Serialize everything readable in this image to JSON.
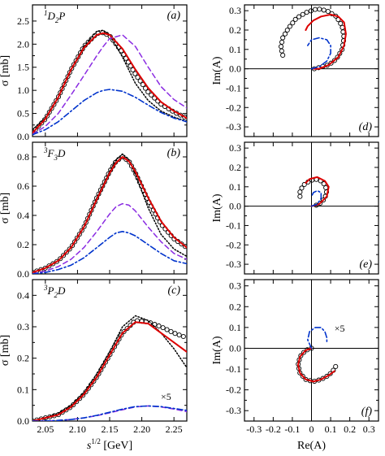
{
  "chart_data": [
    {
      "type": "line",
      "panel": "a",
      "panel_label": "(a)",
      "wave_label": {
        "sup": "1",
        "main": "D",
        "sub": "2",
        "tail": "P"
      },
      "xlabel": "",
      "ylabel": "σ [mb]",
      "xlim": [
        2.03,
        2.27
      ],
      "ylim": [
        0,
        2.85
      ],
      "yticks": [
        "0.0",
        "0.5",
        "1.0",
        "1.5",
        "2.0",
        "2.5"
      ],
      "xticks": [
        "2.05",
        "2.10",
        "2.15",
        "2.20",
        "2.25"
      ],
      "x": [
        2.03,
        2.05,
        2.07,
        2.09,
        2.11,
        2.13,
        2.14,
        2.15,
        2.17,
        2.19,
        2.21,
        2.23,
        2.25,
        2.27
      ],
      "series": [
        {
          "style": "dotted-black",
          "values": [
            0.15,
            0.4,
            0.85,
            1.45,
            1.95,
            2.28,
            2.3,
            2.2,
            1.72,
            1.15,
            0.78,
            0.55,
            0.42,
            0.33
          ]
        },
        {
          "style": "circles-black",
          "values": [
            0.08,
            0.38,
            0.85,
            1.45,
            1.95,
            2.23,
            2.25,
            2.18,
            1.82,
            1.35,
            0.96,
            0.7,
            0.53,
            0.4
          ]
        },
        {
          "style": "solid-red",
          "values": [
            0.08,
            0.38,
            0.85,
            1.45,
            1.92,
            2.2,
            2.24,
            2.2,
            1.9,
            1.45,
            1.05,
            0.75,
            0.55,
            0.4
          ]
        },
        {
          "style": "dashed-purple",
          "values": [
            0.05,
            0.22,
            0.5,
            0.9,
            1.32,
            1.75,
            1.95,
            2.12,
            2.2,
            1.95,
            1.5,
            1.08,
            0.8,
            0.62
          ]
        },
        {
          "style": "dashdot-blue",
          "values": [
            0.04,
            0.15,
            0.32,
            0.55,
            0.78,
            0.95,
            1.0,
            1.02,
            0.98,
            0.85,
            0.68,
            0.52,
            0.4,
            0.32
          ]
        }
      ]
    },
    {
      "type": "line",
      "panel": "b",
      "panel_label": "(b)",
      "wave_label": {
        "sup": "3",
        "main": "F",
        "sub": "3",
        "tail": "D"
      },
      "xlabel": "",
      "ylabel": "σ [mb]",
      "xlim": [
        2.03,
        2.27
      ],
      "ylim": [
        0,
        0.9
      ],
      "yticks": [
        "0.0",
        "0.2",
        "0.4",
        "0.6",
        "0.8"
      ],
      "xticks": [
        "2.05",
        "2.10",
        "2.15",
        "2.20",
        "2.25"
      ],
      "x": [
        2.03,
        2.05,
        2.07,
        2.09,
        2.11,
        2.13,
        2.15,
        2.16,
        2.17,
        2.18,
        2.19,
        2.21,
        2.23,
        2.25,
        2.27
      ],
      "series": [
        {
          "style": "dotted-black",
          "values": [
            0.01,
            0.04,
            0.09,
            0.18,
            0.32,
            0.52,
            0.7,
            0.78,
            0.82,
            0.78,
            0.68,
            0.45,
            0.27,
            0.17,
            0.12
          ]
        },
        {
          "style": "circles-black",
          "values": [
            0.01,
            0.04,
            0.09,
            0.18,
            0.32,
            0.52,
            0.7,
            0.77,
            0.8,
            0.77,
            0.69,
            0.5,
            0.34,
            0.24,
            0.18
          ]
        },
        {
          "style": "solid-red",
          "values": [
            0.01,
            0.04,
            0.09,
            0.18,
            0.32,
            0.51,
            0.69,
            0.76,
            0.8,
            0.77,
            0.7,
            0.52,
            0.36,
            0.25,
            0.18
          ]
        },
        {
          "style": "dashed-purple",
          "values": [
            0.0,
            0.02,
            0.05,
            0.1,
            0.18,
            0.29,
            0.41,
            0.46,
            0.48,
            0.47,
            0.43,
            0.32,
            0.22,
            0.14,
            0.1
          ]
        },
        {
          "style": "dashdot-blue",
          "values": [
            0.0,
            0.01,
            0.03,
            0.06,
            0.11,
            0.18,
            0.25,
            0.28,
            0.29,
            0.28,
            0.26,
            0.2,
            0.14,
            0.09,
            0.07
          ]
        }
      ]
    },
    {
      "type": "line",
      "panel": "c",
      "panel_label": "(c)",
      "wave_label": {
        "sup": "3",
        "main": "P",
        "sub": "2",
        "tail": "D"
      },
      "annotation": "×5",
      "xlabel": "s^1/2 [GeV]",
      "ylabel": "σ [mb]",
      "xlim": [
        2.03,
        2.27
      ],
      "ylim": [
        0,
        0.45
      ],
      "yticks": [
        "0.0",
        "0.1",
        "0.2",
        "0.3",
        "0.4"
      ],
      "xticks": [
        "2.05",
        "2.10",
        "2.15",
        "2.20",
        "2.25"
      ],
      "x": [
        2.03,
        2.05,
        2.07,
        2.09,
        2.11,
        2.13,
        2.15,
        2.17,
        2.19,
        2.21,
        2.23,
        2.25,
        2.27
      ],
      "series": [
        {
          "style": "dotted-black",
          "values": [
            0.0,
            0.01,
            0.025,
            0.05,
            0.09,
            0.15,
            0.22,
            0.3,
            0.335,
            0.32,
            0.28,
            0.23,
            0.17
          ]
        },
        {
          "style": "circles-black",
          "values": [
            0.0,
            0.01,
            0.02,
            0.045,
            0.085,
            0.14,
            0.21,
            0.28,
            0.32,
            0.315,
            0.3,
            0.28,
            0.265
          ]
        },
        {
          "style": "solid-red",
          "values": [
            0.0,
            0.01,
            0.02,
            0.045,
            0.085,
            0.14,
            0.21,
            0.28,
            0.315,
            0.31,
            0.28,
            0.25,
            0.22
          ]
        },
        {
          "style": "dashed-purple",
          "values": [
            0.0,
            0.0,
            0.002,
            0.005,
            0.01,
            0.017,
            0.026,
            0.036,
            0.045,
            0.048,
            0.045,
            0.038,
            0.03
          ]
        },
        {
          "style": "dashdot-blue",
          "values": [
            0.0,
            0.0,
            0.002,
            0.005,
            0.01,
            0.018,
            0.028,
            0.038,
            0.046,
            0.048,
            0.046,
            0.04,
            0.034
          ]
        }
      ]
    },
    {
      "type": "scatter",
      "panel": "d",
      "panel_label": "(d)",
      "xlabel": "",
      "ylabel": "Im(A)",
      "xlim": [
        -0.35,
        0.35
      ],
      "ylim": [
        -0.35,
        0.33
      ],
      "yticks": [
        "0.3",
        "0.2",
        "0.1",
        "0.0",
        "-0.1",
        "-0.2",
        "-0.3"
      ],
      "xticks": [
        "-0.3",
        "-0.2",
        "-0.1",
        "0",
        "0.1",
        "0.2",
        "0.3"
      ],
      "series": [
        {
          "style": "circles-black",
          "points": [
            [
              -0.15,
              0.07
            ],
            [
              -0.16,
              0.11
            ],
            [
              -0.15,
              0.16
            ],
            [
              -0.12,
              0.21
            ],
            [
              -0.08,
              0.26
            ],
            [
              -0.03,
              0.29
            ],
            [
              0.03,
              0.31
            ],
            [
              0.08,
              0.3
            ],
            [
              0.13,
              0.27
            ],
            [
              0.16,
              0.22
            ],
            [
              0.17,
              0.16
            ],
            [
              0.16,
              0.1
            ],
            [
              0.13,
              0.05
            ],
            [
              0.09,
              0.02
            ],
            [
              0.05,
              0.01
            ],
            [
              0.02,
              0.0
            ],
            [
              0.0,
              0.0
            ]
          ]
        },
        {
          "style": "solid-red",
          "points": [
            [
              0.01,
              0.0
            ],
            [
              0.04,
              0.0
            ],
            [
              0.09,
              0.02
            ],
            [
              0.14,
              0.06
            ],
            [
              0.17,
              0.12
            ],
            [
              0.18,
              0.18
            ],
            [
              0.17,
              0.24
            ],
            [
              0.14,
              0.27
            ],
            [
              0.1,
              0.28
            ],
            [
              0.05,
              0.27
            ],
            [
              0.01,
              0.25
            ],
            [
              -0.02,
              0.22
            ],
            [
              -0.03,
              0.2
            ]
          ]
        },
        {
          "style": "dashdot-blue",
          "points": [
            [
              0.0,
              0.0
            ],
            [
              0.04,
              0.01
            ],
            [
              0.08,
              0.04
            ],
            [
              0.1,
              0.08
            ],
            [
              0.1,
              0.12
            ],
            [
              0.08,
              0.15
            ],
            [
              0.04,
              0.16
            ],
            [
              0.0,
              0.15
            ],
            [
              -0.02,
              0.12
            ]
          ]
        }
      ]
    },
    {
      "type": "scatter",
      "panel": "e",
      "panel_label": "(e)",
      "xlabel": "",
      "ylabel": "Im(A)",
      "xlim": [
        -0.35,
        0.35
      ],
      "ylim": [
        -0.35,
        0.33
      ],
      "yticks": [
        "0.3",
        "0.2",
        "0.1",
        "0.0",
        "-0.1",
        "-0.2",
        "-0.3"
      ],
      "xticks": [
        "-0.3",
        "-0.2",
        "-0.1",
        "0",
        "0.1",
        "0.2",
        "0.3"
      ],
      "series": [
        {
          "style": "circles-black",
          "points": [
            [
              -0.06,
              0.05
            ],
            [
              -0.06,
              0.08
            ],
            [
              -0.04,
              0.11
            ],
            [
              -0.01,
              0.13
            ],
            [
              0.02,
              0.14
            ],
            [
              0.05,
              0.13
            ],
            [
              0.07,
              0.11
            ],
            [
              0.08,
              0.08
            ],
            [
              0.07,
              0.04
            ],
            [
              0.04,
              0.01
            ],
            [
              0.01,
              0.0
            ]
          ]
        },
        {
          "style": "solid-red",
          "points": [
            [
              0.0,
              0.0
            ],
            [
              0.04,
              0.01
            ],
            [
              0.08,
              0.05
            ],
            [
              0.09,
              0.1
            ],
            [
              0.07,
              0.13
            ],
            [
              0.03,
              0.15
            ],
            [
              -0.01,
              0.14
            ],
            [
              -0.03,
              0.12
            ]
          ]
        },
        {
          "style": "dashdot-blue",
          "points": [
            [
              0.0,
              0.0
            ],
            [
              0.03,
              0.01
            ],
            [
              0.05,
              0.04
            ],
            [
              0.05,
              0.07
            ],
            [
              0.03,
              0.08
            ],
            [
              0.01,
              0.07
            ],
            [
              0.0,
              0.05
            ]
          ]
        }
      ]
    },
    {
      "type": "scatter",
      "panel": "f",
      "panel_label": "(f)",
      "annotation": "×5",
      "xlabel": "Re(A)",
      "ylabel": "Im(A)",
      "xlim": [
        -0.35,
        0.35
      ],
      "ylim": [
        -0.35,
        0.33
      ],
      "yticks": [
        "0.3",
        "0.2",
        "0.1",
        "0.0",
        "-0.1",
        "-0.2",
        "-0.3"
      ],
      "xticks": [
        "-0.3",
        "-0.2",
        "-0.1",
        "0",
        "0.1",
        "0.2",
        "0.3"
      ],
      "series": [
        {
          "style": "circles-black",
          "points": [
            [
              0.0,
              0.0
            ],
            [
              -0.03,
              -0.01
            ],
            [
              -0.06,
              -0.04
            ],
            [
              -0.07,
              -0.08
            ],
            [
              -0.06,
              -0.12
            ],
            [
              -0.03,
              -0.15
            ],
            [
              0.01,
              -0.16
            ],
            [
              0.05,
              -0.15
            ],
            [
              0.09,
              -0.13
            ],
            [
              0.12,
              -0.1
            ],
            [
              0.13,
              -0.08
            ]
          ]
        },
        {
          "style": "solid-red",
          "points": [
            [
              0.0,
              0.0
            ],
            [
              -0.03,
              -0.01
            ],
            [
              -0.06,
              -0.04
            ],
            [
              -0.07,
              -0.08
            ],
            [
              -0.06,
              -0.12
            ],
            [
              -0.03,
              -0.15
            ],
            [
              0.01,
              -0.16
            ],
            [
              0.05,
              -0.15
            ],
            [
              0.09,
              -0.13
            ],
            [
              0.12,
              -0.11
            ]
          ]
        },
        {
          "style": "dashdot-blue",
          "points": [
            [
              0.0,
              0.0
            ],
            [
              -0.02,
              0.04
            ],
            [
              -0.01,
              0.08
            ],
            [
              0.02,
              0.1
            ],
            [
              0.05,
              0.1
            ],
            [
              0.07,
              0.08
            ],
            [
              0.08,
              0.05
            ],
            [
              0.08,
              0.03
            ]
          ]
        }
      ]
    }
  ]
}
